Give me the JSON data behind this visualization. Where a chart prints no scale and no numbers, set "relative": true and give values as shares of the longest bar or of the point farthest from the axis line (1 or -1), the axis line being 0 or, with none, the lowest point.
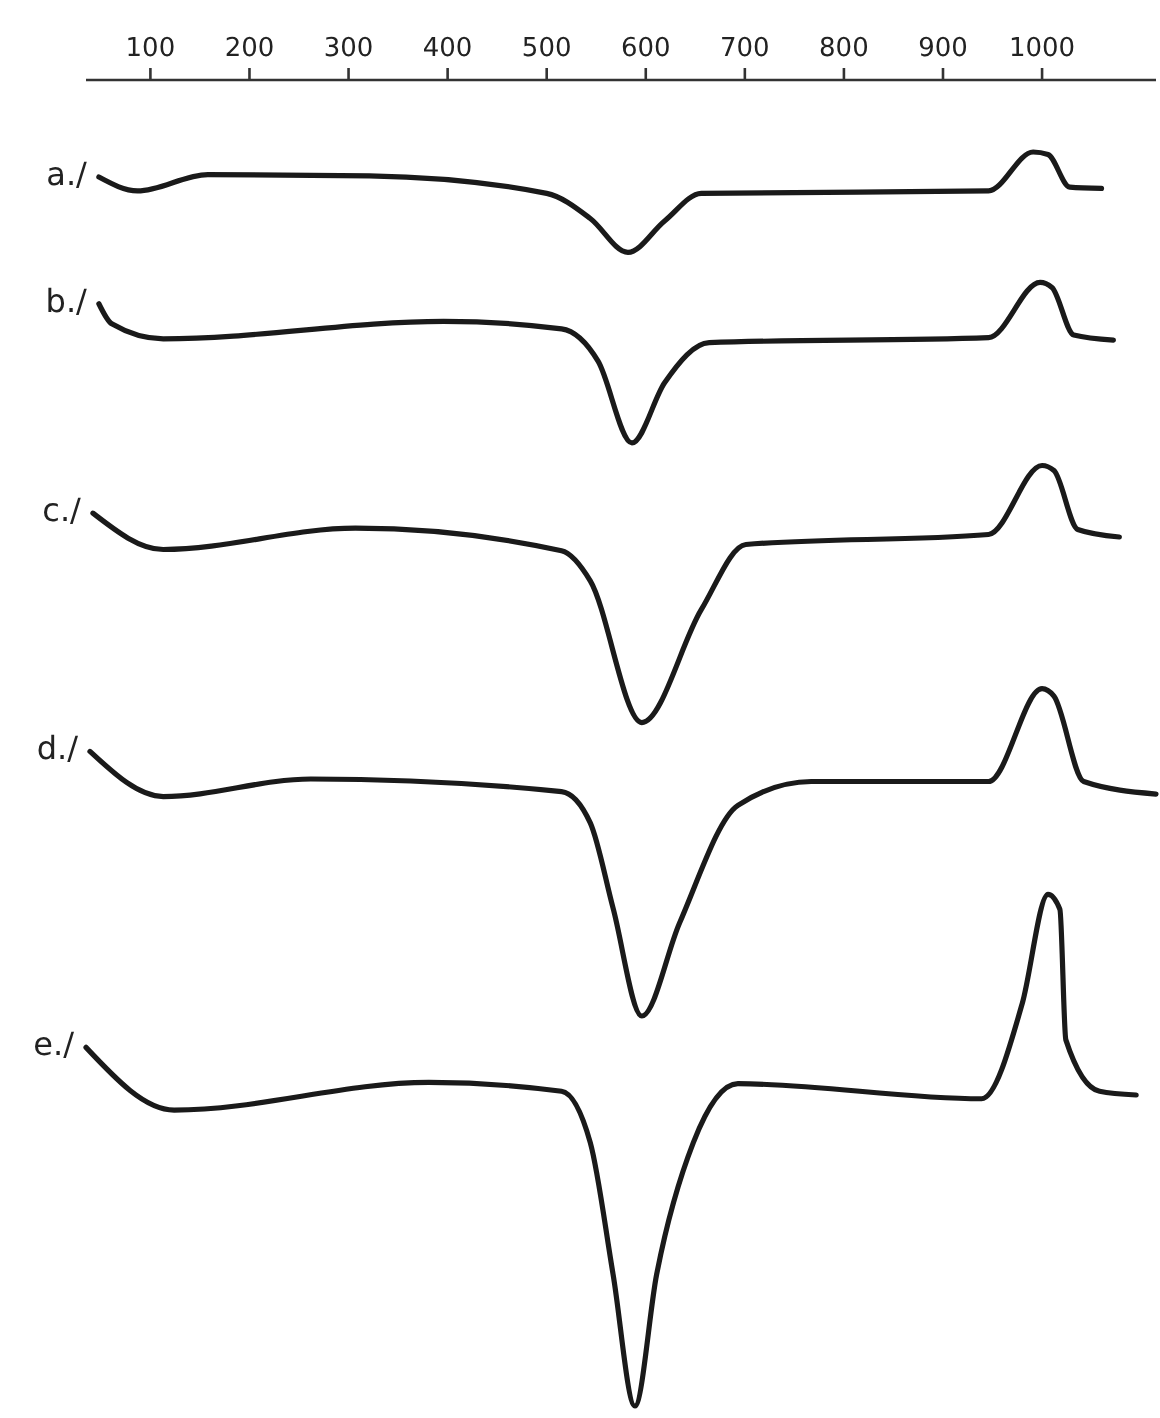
{
  "chart_data": {
    "type": "line",
    "relative": true,
    "xlim": [
      35,
      1115
    ],
    "xticks": [
      100,
      200,
      300,
      400,
      500,
      600,
      700,
      800,
      900,
      1000
    ],
    "grid": false,
    "line_style": "solid",
    "series": [
      {
        "name": "a./",
        "color": "#1a1a1a",
        "x": [
          48,
          87,
          158,
          321,
          500,
          544,
          582,
          619,
          656,
          946,
          991,
          1006,
          1028,
          1060
        ],
        "values": [
          0.98,
          0.969,
          0.982,
          0.981,
          0.967,
          0.947,
          0.92,
          0.945,
          0.967,
          0.969,
          1.0,
          0.998,
          0.972,
          0.971
        ]
      },
      {
        "name": "b./",
        "color": "#1a1a1a",
        "x": [
          48,
          61,
          113,
          396,
          515,
          552,
          586,
          619,
          664,
          946,
          998,
          1010,
          1032,
          1072
        ],
        "values": [
          0.879,
          0.863,
          0.851,
          0.865,
          0.859,
          0.833,
          0.768,
          0.816,
          0.848,
          0.852,
          0.896,
          0.892,
          0.854,
          0.85
        ]
      },
      {
        "name": "c./",
        "color": "#1a1a1a",
        "x": [
          42,
          113,
          307,
          515,
          544,
          596,
          656,
          701,
          946,
          1000,
          1012,
          1036,
          1078
        ],
        "values": [
          0.712,
          0.683,
          0.7,
          0.682,
          0.658,
          0.545,
          0.635,
          0.687,
          0.695,
          0.75,
          0.746,
          0.699,
          0.693
        ]
      },
      {
        "name": "d./",
        "color": "#1a1a1a",
        "x": [
          39,
          113,
          262,
          515,
          544,
          567,
          596,
          634,
          693,
          767,
          946,
          1000,
          1012,
          1042,
          1115
        ],
        "values": [
          0.522,
          0.486,
          0.5,
          0.49,
          0.465,
          0.397,
          0.311,
          0.385,
          0.479,
          0.498,
          0.498,
          0.572,
          0.566,
          0.498,
          0.488
        ]
      },
      {
        "name": "e./",
        "color": "#1a1a1a",
        "x": [
          35,
          124,
          381,
          515,
          544,
          567,
          589,
          611,
          648,
          693,
          939,
          980,
          1006,
          1018,
          1024,
          1058,
          1095
        ],
        "values": [
          0.286,
          0.236,
          0.258,
          0.251,
          0.21,
          0.105,
          0.0,
          0.105,
          0.21,
          0.257,
          0.245,
          0.321,
          0.408,
          0.396,
          0.292,
          0.251,
          0.248
        ]
      }
    ]
  }
}
